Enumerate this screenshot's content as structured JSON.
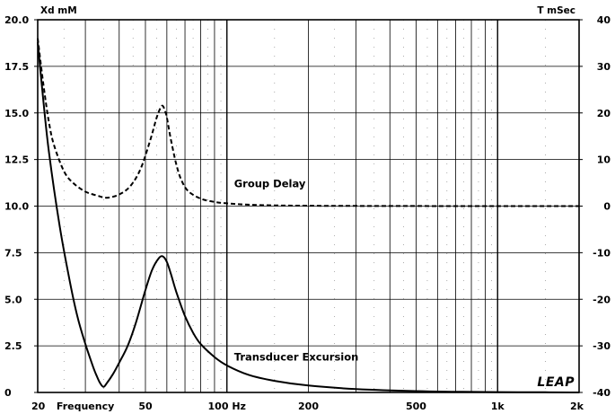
{
  "chart_data": {
    "type": "line",
    "x_scale": "log",
    "xlim": [
      20,
      2000
    ],
    "x_ticks": [
      {
        "value": 20,
        "label": "20"
      },
      {
        "value": 30,
        "label": "Frequency"
      },
      {
        "value": 50,
        "label": "50"
      },
      {
        "value": 100,
        "label": "100 Hz"
      },
      {
        "value": 200,
        "label": "200"
      },
      {
        "value": 500,
        "label": "500"
      },
      {
        "value": 1000,
        "label": "1k"
      },
      {
        "value": 2000,
        "label": "2k"
      }
    ],
    "y_left": {
      "label": "Xd mM",
      "lim": [
        0,
        20
      ],
      "ticks": [
        0,
        2.5,
        5,
        7.5,
        10,
        12.5,
        15,
        17.5,
        20
      ],
      "tick_labels": [
        "0",
        "2.5",
        "5.0",
        "7.5",
        "10.0",
        "12.5",
        "15.0",
        "17.5",
        "20.0"
      ]
    },
    "y_right": {
      "label": "T mSec",
      "lim": [
        -40,
        40
      ],
      "ticks": [
        -40,
        -30,
        -20,
        -10,
        0,
        10,
        20,
        30,
        40
      ],
      "tick_labels": [
        "-40",
        "-30",
        "-20",
        "-10",
        "0",
        "10",
        "20",
        "30",
        "40"
      ]
    },
    "grid": true,
    "series": [
      {
        "name": "Transducer Excursion",
        "axis": "left",
        "style": "solid",
        "label_at": [
          100,
          1.9
        ],
        "x": [
          20,
          21,
          22,
          24,
          26,
          28,
          30,
          32,
          33,
          34,
          35,
          36,
          38,
          40,
          43,
          46,
          50,
          53,
          56,
          58,
          60,
          62,
          65,
          70,
          75,
          80,
          90,
          100,
          120,
          150,
          200,
          300,
          500,
          700,
          1000,
          1500,
          2000
        ],
        "y": [
          18.8,
          15.6,
          12.9,
          9.1,
          6.3,
          4.1,
          2.6,
          1.4,
          0.9,
          0.5,
          0.3,
          0.5,
          1.0,
          1.6,
          2.5,
          3.7,
          5.5,
          6.6,
          7.2,
          7.3,
          7.0,
          6.4,
          5.4,
          4.1,
          3.2,
          2.6,
          1.9,
          1.45,
          0.95,
          0.62,
          0.37,
          0.18,
          0.07,
          0.04,
          0.02,
          0.01,
          0.0
        ]
      },
      {
        "name": "Group Delay",
        "axis": "right",
        "style": "dashed",
        "label_at": [
          100,
          4.8
        ],
        "x": [
          20,
          21,
          22,
          23,
          25,
          27,
          30,
          33,
          36,
          40,
          44,
          48,
          52,
          55,
          57,
          58,
          59,
          60,
          62,
          65,
          68,
          72,
          80,
          90,
          100,
          120,
          150,
          200,
          300,
          500,
          1000,
          2000
        ],
        "y": [
          36.0,
          26.0,
          18.0,
          13.0,
          7.5,
          5.0,
          3.1,
          2.3,
          1.8,
          2.5,
          4.3,
          8.0,
          14.0,
          19.0,
          21.2,
          21.5,
          20.5,
          19.0,
          14.5,
          9.0,
          5.5,
          3.2,
          1.6,
          0.9,
          0.6,
          0.3,
          0.15,
          0.08,
          0.03,
          0.01,
          0.0,
          0.0
        ]
      }
    ],
    "logo": "LEAP"
  }
}
